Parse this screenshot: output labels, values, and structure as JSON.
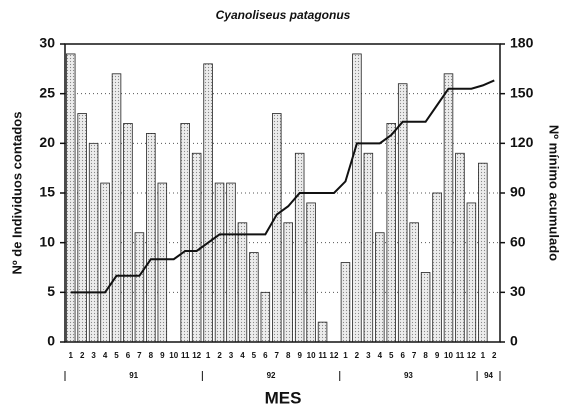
{
  "chart_data": {
    "type": "bar-line",
    "title": "Cyanoliseus patagonus",
    "y_label": "Nº de Individuos contados",
    "y2_label": "Nº mínimo acumulado",
    "x_label": "MES",
    "categories": [
      "1",
      "2",
      "3",
      "4",
      "5",
      "6",
      "7",
      "8",
      "9",
      "10",
      "11",
      "12",
      "1",
      "2",
      "3",
      "4",
      "5",
      "6",
      "7",
      "8",
      "9",
      "10",
      "11",
      "12",
      "1",
      "2",
      "3",
      "4",
      "5",
      "6",
      "7",
      "8",
      "9",
      "10",
      "11",
      "12",
      "1",
      "2"
    ],
    "years": [
      "91",
      "92",
      "93",
      "94"
    ],
    "series": [
      {
        "name": "Nº de Individuos contados",
        "type": "bar",
        "color": "#d9d9d9",
        "values": [
          29,
          23,
          20,
          16,
          27,
          22,
          11,
          21,
          16,
          0,
          22,
          19,
          28,
          16,
          16,
          12,
          9,
          5,
          23,
          12,
          19,
          14,
          2,
          0,
          8,
          29,
          19,
          11,
          22,
          26,
          12,
          7,
          15,
          27,
          19,
          14,
          18,
          0
        ]
      },
      {
        "name": "Nº mínimo acumulado",
        "type": "line",
        "axis": "y2",
        "color": "#111111",
        "values": [
          30,
          30,
          30,
          30,
          40,
          40,
          40,
          50,
          50,
          50,
          55,
          55,
          60,
          65,
          65,
          65,
          65,
          65,
          77,
          82,
          90,
          90,
          90,
          90,
          97,
          120,
          120,
          120,
          125,
          133,
          133,
          133,
          143,
          153,
          153,
          153,
          155,
          158
        ]
      }
    ],
    "ylim": [
      0,
      30
    ],
    "yticks": [
      0,
      5,
      10,
      15,
      20,
      25,
      30
    ],
    "y2lim": [
      0,
      180
    ],
    "y2ticks": [
      0,
      30,
      60,
      90,
      120,
      150,
      180
    ],
    "grid": true
  }
}
